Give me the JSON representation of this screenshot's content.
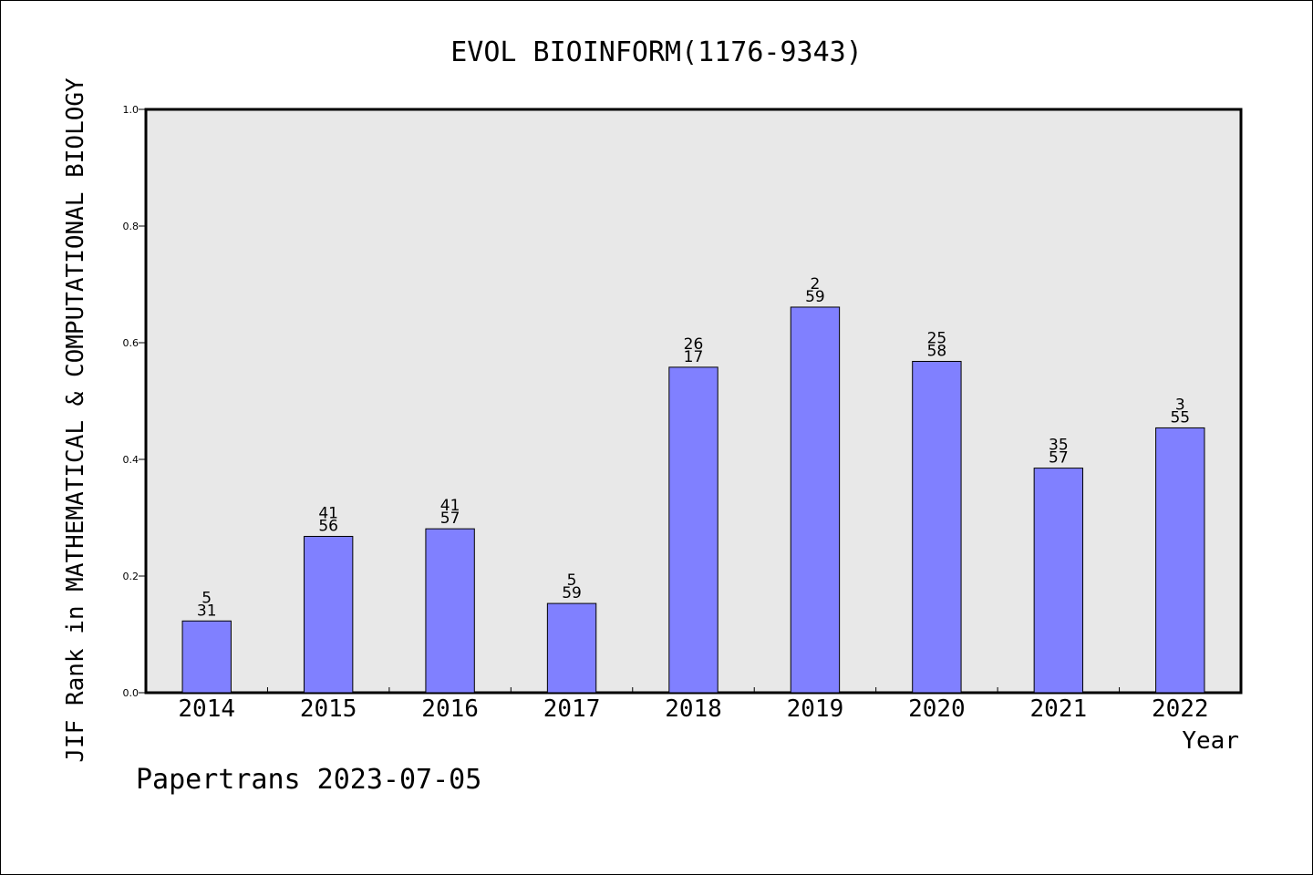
{
  "chart_data": {
    "type": "bar",
    "title": "EVOL BIOINFORM(1176-9343)",
    "xlabel": "Year",
    "ylabel": "JIF Rank in MATHEMATICAL & COMPUTATIONAL BIOLOGY",
    "ylim": [
      0,
      1.0
    ],
    "yticks": [
      "0.0",
      "0.2",
      "0.4",
      "0.6",
      "0.8",
      "1.0"
    ],
    "categories": [
      "2014",
      "2015",
      "2016",
      "2017",
      "2018",
      "2019",
      "2020",
      "2021",
      "2022"
    ],
    "values": [
      0.123,
      0.268,
      0.281,
      0.153,
      0.558,
      0.661,
      0.568,
      0.385,
      0.454
    ],
    "labels_top": [
      "5",
      "41",
      "41",
      "5",
      "26",
      "2",
      "25",
      "35",
      "3"
    ],
    "labels_bottom": [
      "31",
      "56",
      "57",
      "59",
      "17",
      "59",
      "58",
      "57",
      "55"
    ],
    "grid": false,
    "bar_color": "#8080ff",
    "plot_background": "#e8e8e8"
  },
  "footer": "Papertrans 2023-07-05"
}
